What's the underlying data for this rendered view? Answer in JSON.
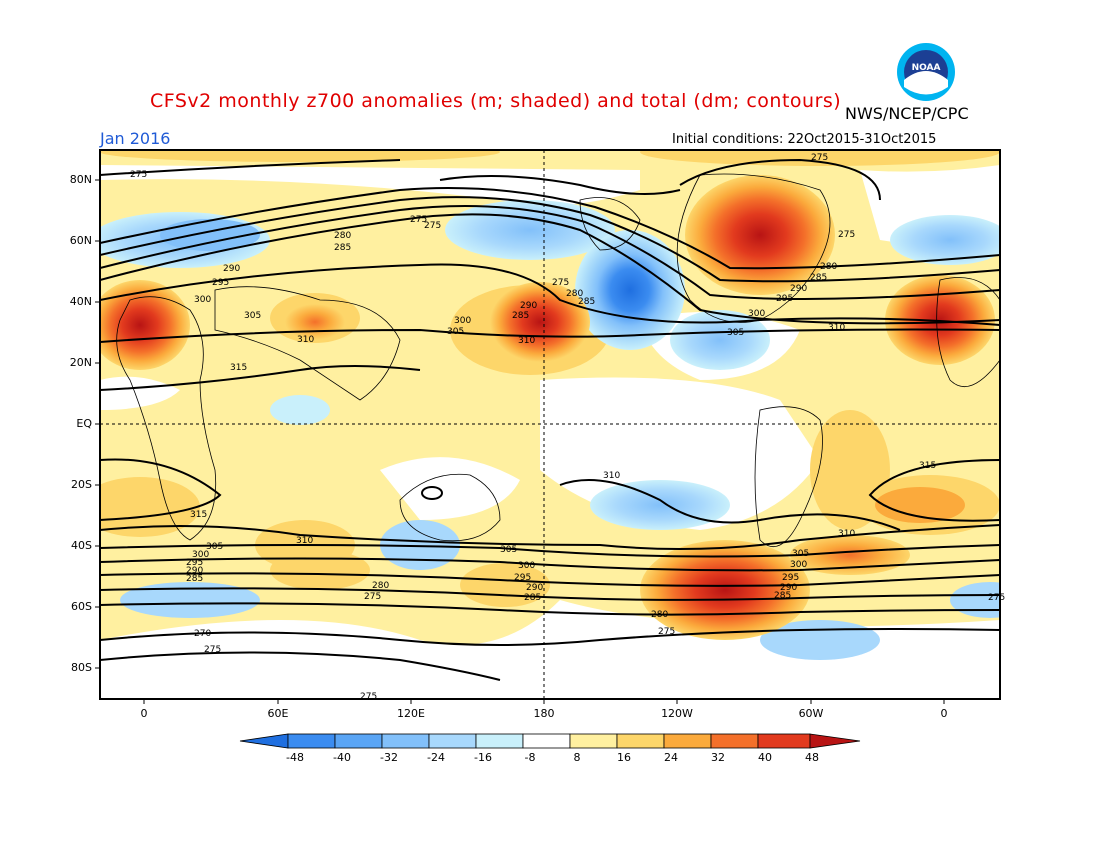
{
  "header": {
    "title": "CFSv2 monthly z700 anomalies (m; shaded) and total (dm; contours)",
    "agency": "NWS/NCEP/CPC",
    "month": "Jan 2016",
    "initial_conditions": "Initial conditions: 22Oct2015-31Oct2015",
    "logo_text": "NOAA"
  },
  "axes": {
    "lat_labels": [
      "80N",
      "60N",
      "40N",
      "20N",
      "EQ",
      "20S",
      "40S",
      "60S",
      "80S"
    ],
    "lon_labels": [
      "0",
      "60E",
      "120E",
      "180",
      "120W",
      "60W",
      "0"
    ]
  },
  "colorbar": {
    "ticks": [
      "-48",
      "-40",
      "-32",
      "-24",
      "-16",
      "-8",
      "8",
      "16",
      "24",
      "32",
      "40",
      "48"
    ],
    "colors": [
      "#1f6fe0",
      "#3b8cf0",
      "#5aa5f5",
      "#82c0fa",
      "#a8d8fc",
      "#c9f0fb",
      "#ffffff",
      "#fff0a0",
      "#fdd66a",
      "#fbaa3c",
      "#f4702a",
      "#e23a1e",
      "#b81414"
    ]
  },
  "contour_labels": [
    "275",
    "280",
    "285",
    "290",
    "295",
    "300",
    "305",
    "310",
    "315",
    "270"
  ]
}
